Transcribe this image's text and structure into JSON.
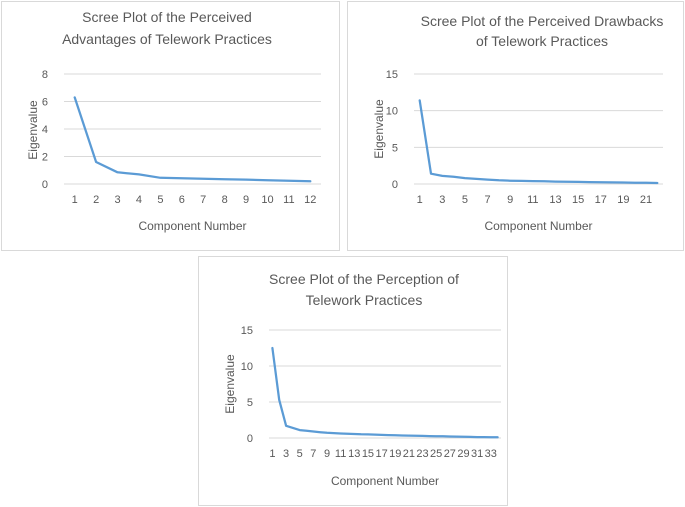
{
  "chart_data": [
    {
      "type": "line",
      "title_lines": [
        "Scree Plot of the Perceived",
        "Advantages of Telework Practices"
      ],
      "xlabel": "Component Number",
      "ylabel": "Eigenvalue",
      "x": [
        1,
        2,
        3,
        4,
        5,
        6,
        7,
        8,
        9,
        10,
        11,
        12
      ],
      "xticklabels": [
        "1",
        "2",
        "3",
        "4",
        "5",
        "6",
        "7",
        "8",
        "9",
        "10",
        "11",
        "12"
      ],
      "yticks": [
        "0",
        "2",
        "4",
        "6",
        "8"
      ],
      "ylim": [
        0,
        8
      ],
      "grid": true,
      "legend": "none",
      "series": [
        {
          "values": [
            6.3,
            1.6,
            0.85,
            0.7,
            0.45,
            0.42,
            0.38,
            0.35,
            0.32,
            0.28,
            0.24,
            0.2
          ]
        }
      ],
      "line_color": "#5b9bd5"
    },
    {
      "type": "line",
      "title_lines": [
        "Scree Plot of the Perceived Drawbacks",
        "of Telework Practices"
      ],
      "xlabel": "Component Number",
      "ylabel": "Eigenvalue",
      "x": [
        1,
        2,
        3,
        4,
        5,
        6,
        7,
        8,
        9,
        10,
        11,
        12,
        13,
        14,
        15,
        16,
        17,
        18,
        19,
        20,
        21,
        22
      ],
      "xticklabels": [
        "1",
        "3",
        "5",
        "7",
        "9",
        "11",
        "13",
        "15",
        "17",
        "19",
        "21"
      ],
      "yticks": [
        "0",
        "5",
        "10",
        "15"
      ],
      "ylim": [
        0,
        15
      ],
      "grid": true,
      "legend": "none",
      "series": [
        {
          "values": [
            11.4,
            1.4,
            1.1,
            1.0,
            0.8,
            0.7,
            0.6,
            0.5,
            0.45,
            0.42,
            0.4,
            0.38,
            0.33,
            0.3,
            0.28,
            0.26,
            0.24,
            0.22,
            0.2,
            0.18,
            0.16,
            0.14
          ]
        }
      ],
      "line_color": "#5b9bd5"
    },
    {
      "type": "line",
      "title_lines": [
        "Scree Plot of the Perception of",
        "Telework Practices"
      ],
      "xlabel": "Component Number",
      "ylabel": "Eigenvalue",
      "x": [
        1,
        2,
        3,
        4,
        5,
        6,
        7,
        8,
        9,
        10,
        11,
        12,
        13,
        14,
        15,
        16,
        17,
        18,
        19,
        20,
        21,
        22,
        23,
        24,
        25,
        26,
        27,
        28,
        29,
        30,
        31,
        32,
        33,
        34
      ],
      "xticklabels": [
        "1",
        "3",
        "5",
        "7",
        "9",
        "11",
        "13",
        "15",
        "17",
        "19",
        "21",
        "23",
        "25",
        "27",
        "29",
        "31",
        "33"
      ],
      "yticks": [
        "0",
        "5",
        "10",
        "15"
      ],
      "ylim": [
        0,
        15
      ],
      "grid": true,
      "legend": "none",
      "series": [
        {
          "values": [
            12.5,
            5.3,
            1.7,
            1.4,
            1.1,
            1.0,
            0.9,
            0.8,
            0.72,
            0.68,
            0.62,
            0.58,
            0.55,
            0.52,
            0.5,
            0.47,
            0.43,
            0.4,
            0.38,
            0.35,
            0.33,
            0.31,
            0.29,
            0.27,
            0.25,
            0.23,
            0.21,
            0.19,
            0.17,
            0.15,
            0.13,
            0.12,
            0.11,
            0.1
          ]
        }
      ],
      "line_color": "#5b9bd5"
    }
  ]
}
